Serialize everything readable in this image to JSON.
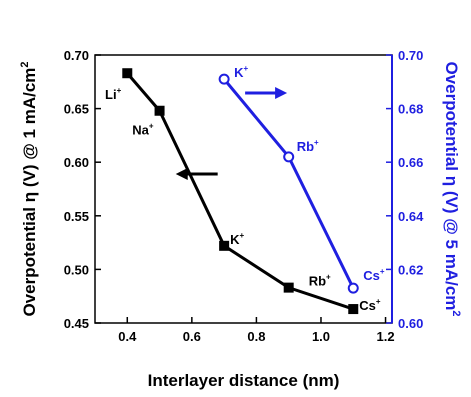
{
  "chart_data": {
    "type": "line",
    "xlabel": "Interlayer distance (nm)",
    "ylabel_left": "Overpotential η (V) @ 1 mA/cm",
    "ylabel_left_superscript": "2",
    "ylabel_right": "Overpotential η (V) @ 5 mA/cm",
    "ylabel_right_superscript": "2",
    "xlim": [
      0.3,
      1.22
    ],
    "ylim_left": [
      0.45,
      0.7
    ],
    "ylim_right": [
      0.6,
      0.7
    ],
    "x_ticks": [
      "0.4",
      "0.6",
      "0.8",
      "1.0",
      "1.2"
    ],
    "x_tick_values": [
      0.4,
      0.6,
      0.8,
      1.0,
      1.2
    ],
    "y_left_ticks": [
      "0.45",
      "0.50",
      "0.55",
      "0.60",
      "0.65",
      "0.70"
    ],
    "y_left_tick_values": [
      0.45,
      0.5,
      0.55,
      0.6,
      0.65,
      0.7
    ],
    "y_right_ticks": [
      "0.60",
      "0.62",
      "0.64",
      "0.66",
      "0.68",
      "0.70"
    ],
    "y_right_tick_values": [
      0.6,
      0.62,
      0.64,
      0.66,
      0.68,
      0.7
    ],
    "grid": false,
    "series": [
      {
        "axis": "left",
        "color": "#000000",
        "marker": "filled-square",
        "x": [
          0.4,
          0.5,
          0.7,
          0.9,
          1.1
        ],
        "values": [
          0.683,
          0.648,
          0.522,
          0.483,
          0.463
        ],
        "labels": [
          {
            "base": "Li",
            "sup": "+"
          },
          {
            "base": "Na",
            "sup": "+"
          },
          {
            "base": "K",
            "sup": "+"
          },
          {
            "base": "Rb",
            "sup": "+"
          },
          {
            "base": "Cs",
            "sup": "+"
          }
        ]
      },
      {
        "axis": "right",
        "color": "#1f1fe0",
        "marker": "open-circle",
        "x": [
          0.7,
          0.9,
          1.1
        ],
        "values": [
          0.691,
          0.662,
          0.613
        ],
        "labels": [
          {
            "base": "K",
            "sup": "+"
          },
          {
            "base": "Rb",
            "sup": "+"
          },
          {
            "base": "Cs",
            "sup": "+"
          }
        ]
      }
    ],
    "arrows": [
      {
        "series": 0,
        "direction": "left"
      },
      {
        "series": 1,
        "direction": "right"
      }
    ]
  }
}
